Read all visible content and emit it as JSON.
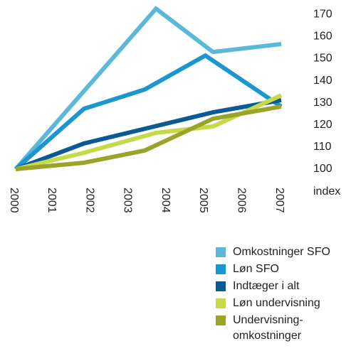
{
  "chart_data": {
    "type": "line",
    "ylabel": "index",
    "xlim": [
      2000,
      2007
    ],
    "xticks": [
      2000,
      2001,
      2002,
      2003,
      2004,
      2005,
      2006,
      2007
    ],
    "ylim": [
      100,
      175
    ],
    "yticks": [
      100,
      110,
      120,
      130,
      140,
      150,
      160,
      170
    ],
    "series": [
      {
        "name": "Omkostninger SFO",
        "color": "#5bb8d8",
        "x": [
          2000,
          2003.7,
          2005.2,
          2007
        ],
        "values": [
          100,
          172.6,
          153,
          156.6
        ]
      },
      {
        "name": "Løn SFO",
        "color": "#1a96d0",
        "x": [
          2000,
          2001.8,
          2003.4,
          2005,
          2007
        ],
        "values": [
          100,
          127.3,
          136,
          151.4,
          128.3
        ]
      },
      {
        "name": "Indtæger i alt",
        "color": "#0a5a96",
        "x": [
          2000,
          2001.8,
          2005.2,
          2007
        ],
        "values": [
          100,
          111.6,
          125.7,
          131.2
        ]
      },
      {
        "name": "Løn undervisning",
        "color": "#c5d94a",
        "x": [
          2000,
          2001.8,
          2003.7,
          2005.2,
          2007
        ],
        "values": [
          100,
          107.4,
          116.4,
          119.3,
          133.4
        ]
      },
      {
        "name": "Undervisning-\nomkostninger",
        "color": "#9aa42a",
        "x": [
          2000,
          2001.8,
          2003.4,
          2005.2,
          2007
        ],
        "values": [
          100,
          102.9,
          108.4,
          122.8,
          128.3
        ]
      }
    ]
  }
}
